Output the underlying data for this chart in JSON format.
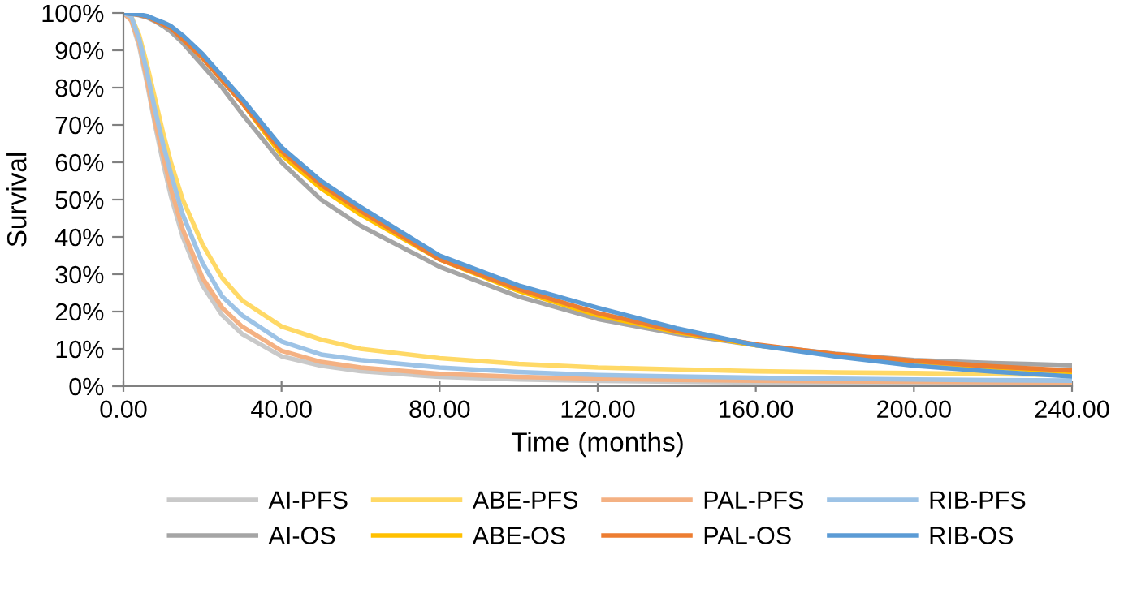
{
  "chart_data": {
    "type": "line",
    "xlabel": "Time (months)",
    "ylabel": "Survival",
    "x": [
      0,
      2,
      4,
      6,
      8,
      10,
      12,
      15,
      20,
      25,
      30,
      40,
      50,
      60,
      80,
      100,
      120,
      140,
      160,
      180,
      200,
      220,
      240
    ],
    "series": [
      {
        "name": "AI-PFS",
        "color": "#c9c9c9",
        "values": [
          100,
          98,
          91,
          81,
          70,
          60,
          51,
          40,
          27,
          19,
          14,
          8,
          5.5,
          4,
          2.5,
          1.8,
          1.4,
          1.2,
          1,
          0.9,
          0.8,
          0.7,
          0.6
        ]
      },
      {
        "name": "ABE-PFS",
        "color": "#ffd966",
        "values": [
          100,
          99,
          94,
          86,
          77,
          68,
          60,
          50,
          38,
          29,
          23,
          16,
          12.5,
          10,
          7.5,
          6,
          5,
          4.5,
          4,
          3.7,
          3.5,
          3.2,
          3
        ]
      },
      {
        "name": "PAL-PFS",
        "color": "#f4b183",
        "values": [
          100,
          98,
          92,
          82,
          71,
          62,
          53,
          42,
          29,
          21,
          16,
          9.5,
          6.5,
          5,
          3.3,
          2.5,
          2,
          1.7,
          1.5,
          1.3,
          1.2,
          1.1,
          1
        ]
      },
      {
        "name": "RIB-PFS",
        "color": "#9dc3e6",
        "values": [
          100,
          99,
          93,
          84,
          74,
          65,
          57,
          46,
          33,
          24,
          19,
          12,
          8.5,
          7,
          5,
          3.8,
          3,
          2.6,
          2.3,
          2,
          1.8,
          1.6,
          1.5
        ]
      },
      {
        "name": "AI-OS",
        "color": "#a5a5a5",
        "values": [
          100,
          99.8,
          99.4,
          98.8,
          97.8,
          96.5,
          95,
          92,
          86,
          80,
          73,
          60,
          50,
          43,
          32,
          24,
          18,
          14,
          11,
          8.7,
          7,
          6.2,
          5.6
        ]
      },
      {
        "name": "ABE-OS",
        "color": "#ffc000",
        "values": [
          null,
          null,
          null,
          null,
          null,
          null,
          null,
          93,
          88,
          82,
          76,
          62,
          53,
          46,
          34,
          25.5,
          19,
          14.5,
          11,
          8.5,
          6.6,
          5,
          3.8
        ]
      },
      {
        "name": "PAL-OS",
        "color": "#ed7d31",
        "values": [
          100,
          99.8,
          99.5,
          99,
          98,
          97,
          96,
          93,
          88,
          82,
          76,
          63,
          54,
          47,
          34,
          26,
          19.6,
          14.8,
          11.2,
          8.6,
          6.8,
          5.3,
          4.2
        ]
      },
      {
        "name": "RIB-OS",
        "color": "#5b9bd5",
        "values": [
          100,
          99.8,
          99.6,
          99.2,
          98.3,
          97.5,
          96.5,
          94,
          89,
          83,
          77,
          64,
          55,
          48,
          35,
          27,
          21,
          15.5,
          11,
          8,
          5.5,
          3.9,
          2.6
        ]
      }
    ],
    "xlim": [
      0,
      240
    ],
    "xticks": [
      {
        "value": 0,
        "label": "0.00"
      },
      {
        "value": 40,
        "label": "40.00"
      },
      {
        "value": 80,
        "label": "80.00"
      },
      {
        "value": 120,
        "label": "120.00"
      },
      {
        "value": 160,
        "label": "160.00"
      },
      {
        "value": 200,
        "label": "200.00"
      },
      {
        "value": 240,
        "label": "240.00"
      }
    ],
    "ylim": [
      0,
      100
    ],
    "yticks": [
      {
        "value": 0,
        "label": "0%"
      },
      {
        "value": 10,
        "label": "10%"
      },
      {
        "value": 20,
        "label": "20%"
      },
      {
        "value": 30,
        "label": "30%"
      },
      {
        "value": 40,
        "label": "40%"
      },
      {
        "value": 50,
        "label": "50%"
      },
      {
        "value": 60,
        "label": "60%"
      },
      {
        "value": 70,
        "label": "70%"
      },
      {
        "value": 80,
        "label": "80%"
      },
      {
        "value": 90,
        "label": "90%"
      },
      {
        "value": 100,
        "label": "100%"
      }
    ],
    "grid": false,
    "legend": "bottom",
    "marker": "none",
    "line_style": "solid"
  }
}
